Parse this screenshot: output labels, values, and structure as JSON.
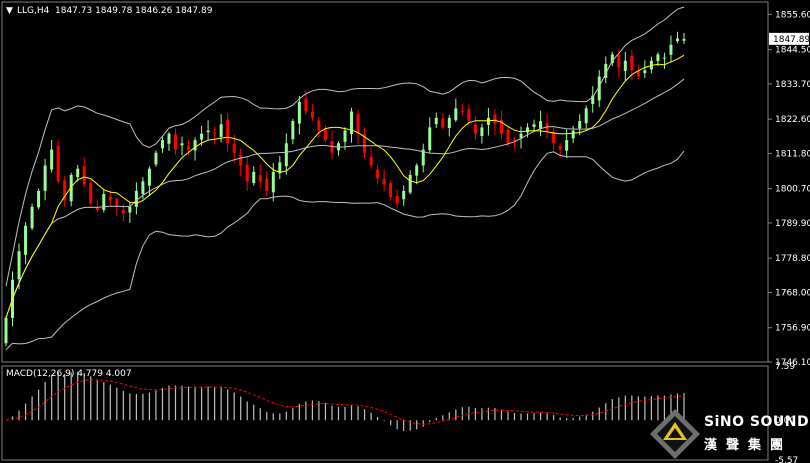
{
  "header": {
    "symbol_label": "LLG,H4",
    "ohlc": "1847.73 1849.78 1846.26 1847.89",
    "macd_label": "MACD(12,26,9) 4.779 4.007"
  },
  "price_axis": {
    "ticks": [
      "1855.60",
      "1844.50",
      "1833.70",
      "1822.60",
      "1811.80",
      "1800.70",
      "1789.90",
      "1778.80",
      "1768.00",
      "1756.90",
      "1746.10"
    ],
    "current_price": "1847.89"
  },
  "macd_axis": {
    "ticks": [
      "7.59",
      "0.00",
      "-5.57"
    ]
  },
  "brand": {
    "english": "SiNO SOUND",
    "chinese": "漢聲集團"
  },
  "colors": {
    "background": "#000000",
    "bull_candle": "#98FB98",
    "bear_candle": "#FF0000",
    "ma_line": "#FFFF00",
    "bands": "#C0C0C0",
    "macd_signal": "#FF0000",
    "macd_hist": "#C0C0C0"
  },
  "chart_data": {
    "type": "candlestick",
    "symbol": "LLG",
    "timeframe": "H4",
    "price_range": [
      1746.1,
      1859.5
    ],
    "ma_period_note": "",
    "closes": [
      1760,
      1772,
      1781,
      1789,
      1795,
      1800,
      1808,
      1813,
      1803,
      1797,
      1805,
      1807,
      1802,
      1796,
      1794,
      1799,
      1797,
      1795,
      1793,
      1795,
      1800,
      1803,
      1807,
      1812,
      1816,
      1818,
      1813,
      1815,
      1813,
      1816,
      1818,
      1819,
      1818,
      1821,
      1815,
      1812,
      1808,
      1803,
      1806,
      1803,
      1800,
      1806,
      1809,
      1815,
      1822,
      1828,
      1825,
      1823,
      1819,
      1816,
      1812,
      1815,
      1819,
      1825,
      1818,
      1812,
      1808,
      1804,
      1802,
      1798,
      1796,
      1800,
      1805,
      1808,
      1813,
      1820,
      1823,
      1820,
      1823,
      1826,
      1825,
      1822,
      1818,
      1820,
      1823,
      1821,
      1818,
      1815,
      1816,
      1818,
      1820,
      1821,
      1822,
      1819,
      1815,
      1813,
      1816,
      1819,
      1822,
      1826,
      1830,
      1836,
      1840,
      1843,
      1839,
      1841,
      1838,
      1836,
      1838,
      1841,
      1843,
      1842,
      1846,
      1848,
      1847.89
    ],
    "macd": {
      "range": [
        -5.57,
        7.59
      ],
      "value": 4.779,
      "signal": 4.007
    }
  }
}
